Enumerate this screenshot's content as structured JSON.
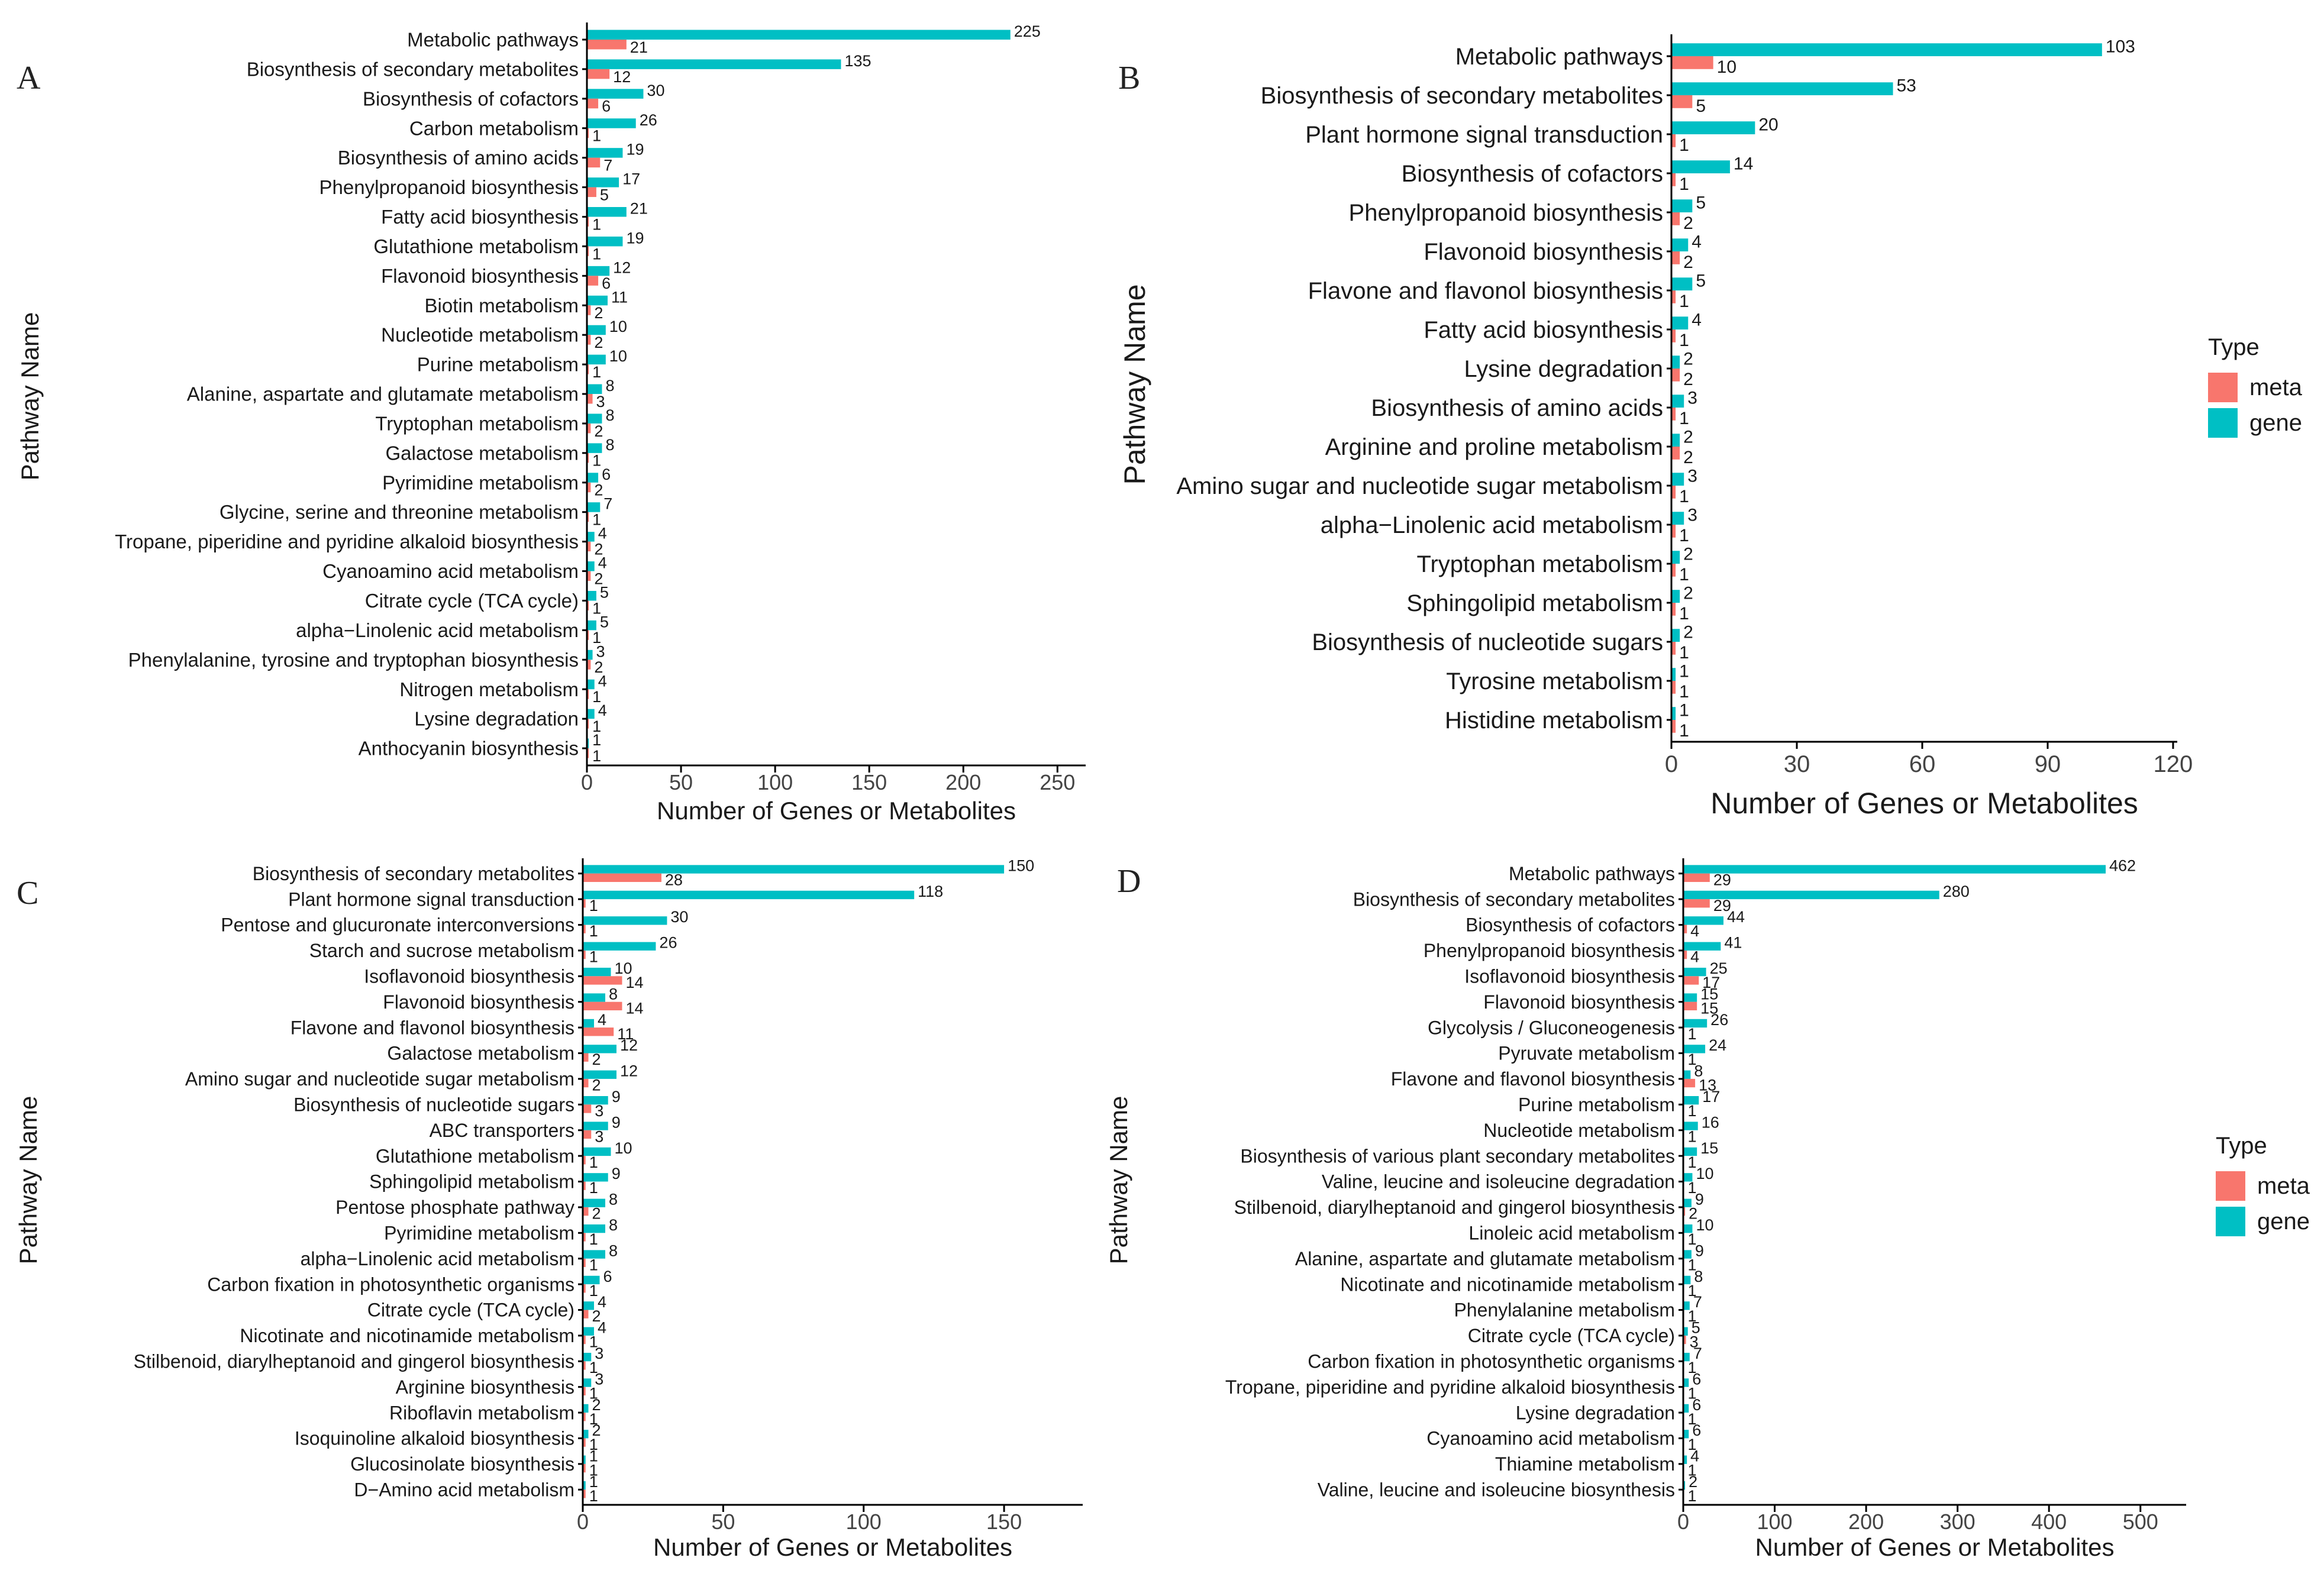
{
  "figure": {
    "legend": {
      "title": "Type",
      "items": [
        "meta",
        "gene"
      ]
    },
    "colors": {
      "meta": "#F8766D",
      "gene": "#00BFC4",
      "axis": "#000000",
      "text": "#1a1a1a"
    }
  },
  "chart_data": [
    {
      "type": "bar",
      "panel": "A",
      "orientation": "horizontal",
      "xlabel": "Number of Genes or Metabolites",
      "ylabel": "Pathway Name",
      "xlim": [
        0,
        265
      ],
      "xticks": [
        0,
        50,
        100,
        150,
        200,
        250
      ],
      "categories": [
        "Metabolic pathways",
        "Biosynthesis of secondary metabolites",
        "Biosynthesis of cofactors",
        "Carbon metabolism",
        "Biosynthesis of amino acids",
        "Phenylpropanoid biosynthesis",
        "Fatty acid biosynthesis",
        "Glutathione metabolism",
        "Flavonoid biosynthesis",
        "Biotin metabolism",
        "Nucleotide metabolism",
        "Purine metabolism",
        "Alanine, aspartate and glutamate metabolism",
        "Tryptophan metabolism",
        "Galactose metabolism",
        "Pyrimidine metabolism",
        "Glycine, serine and threonine metabolism",
        "Tropane, piperidine and pyridine alkaloid biosynthesis",
        "Cyanoamino acid metabolism",
        "Citrate cycle (TCA cycle)",
        "alpha−Linolenic acid metabolism",
        "Phenylalanine, tyrosine and tryptophan biosynthesis",
        "Nitrogen metabolism",
        "Lysine degradation",
        "Anthocyanin biosynthesis"
      ],
      "series": [
        {
          "name": "gene",
          "values": [
            225,
            135,
            30,
            26,
            19,
            17,
            21,
            19,
            12,
            11,
            10,
            10,
            8,
            8,
            8,
            6,
            7,
            4,
            4,
            5,
            5,
            3,
            4,
            4,
            1
          ]
        },
        {
          "name": "meta",
          "values": [
            21,
            12,
            6,
            1,
            7,
            5,
            1,
            1,
            6,
            2,
            2,
            1,
            3,
            2,
            1,
            2,
            1,
            2,
            2,
            1,
            1,
            2,
            1,
            1,
            1
          ]
        }
      ]
    },
    {
      "type": "bar",
      "panel": "B",
      "orientation": "horizontal",
      "xlabel": "Number of Genes or Metabolites",
      "ylabel": "Pathway Name",
      "xlim": [
        0,
        121
      ],
      "xticks": [
        0,
        30,
        60,
        90,
        120
      ],
      "categories": [
        "Metabolic pathways",
        "Biosynthesis of secondary metabolites",
        "Plant hormone signal transduction",
        "Biosynthesis of cofactors",
        "Phenylpropanoid biosynthesis",
        "Flavonoid biosynthesis",
        "Flavone and flavonol biosynthesis",
        "Fatty acid biosynthesis",
        "Lysine degradation",
        "Biosynthesis of amino acids",
        "Arginine and proline metabolism",
        "Amino sugar and nucleotide sugar metabolism",
        "alpha−Linolenic acid metabolism",
        "Tryptophan metabolism",
        "Sphingolipid metabolism",
        "Biosynthesis of nucleotide sugars",
        "Tyrosine metabolism",
        "Histidine metabolism"
      ],
      "series": [
        {
          "name": "gene",
          "values": [
            103,
            53,
            20,
            14,
            5,
            4,
            5,
            4,
            2,
            3,
            2,
            3,
            3,
            2,
            2,
            2,
            1,
            1
          ]
        },
        {
          "name": "meta",
          "values": [
            10,
            5,
            1,
            1,
            2,
            2,
            1,
            1,
            2,
            1,
            2,
            1,
            1,
            1,
            1,
            1,
            1,
            1
          ]
        }
      ]
    },
    {
      "type": "bar",
      "panel": "C",
      "orientation": "horizontal",
      "xlabel": "Number of Genes or Metabolites",
      "ylabel": "Pathway Name",
      "xlim": [
        0,
        178
      ],
      "xticks": [
        0,
        50,
        100,
        150
      ],
      "categories": [
        "Biosynthesis of secondary metabolites",
        "Plant hormone signal transduction",
        "Pentose and glucuronate interconversions",
        "Starch and sucrose metabolism",
        "Isoflavonoid biosynthesis",
        "Flavonoid biosynthesis",
        "Flavone and flavonol biosynthesis",
        "Galactose metabolism",
        "Amino sugar and nucleotide sugar metabolism",
        "Biosynthesis of nucleotide sugars",
        "ABC transporters",
        "Glutathione metabolism",
        "Sphingolipid metabolism",
        "Pentose phosphate pathway",
        "Pyrimidine metabolism",
        "alpha−Linolenic acid metabolism",
        "Carbon fixation in photosynthetic organisms",
        "Citrate cycle (TCA cycle)",
        "Nicotinate and nicotinamide metabolism",
        "Stilbenoid, diarylheptanoid and gingerol biosynthesis",
        "Arginine biosynthesis",
        "Riboflavin metabolism",
        "Isoquinoline alkaloid biosynthesis",
        "Glucosinolate biosynthesis",
        "D−Amino acid metabolism"
      ],
      "series": [
        {
          "name": "gene",
          "values": [
            150,
            118,
            30,
            26,
            10,
            8,
            4,
            12,
            12,
            9,
            9,
            10,
            9,
            8,
            8,
            8,
            6,
            4,
            4,
            3,
            3,
            2,
            2,
            1,
            1
          ]
        },
        {
          "name": "meta",
          "values": [
            28,
            1,
            1,
            1,
            14,
            14,
            11,
            2,
            2,
            3,
            3,
            1,
            1,
            2,
            1,
            1,
            1,
            2,
            1,
            1,
            1,
            1,
            1,
            1,
            1
          ]
        }
      ]
    },
    {
      "type": "bar",
      "panel": "D",
      "orientation": "horizontal",
      "xlabel": "Number of Genes or Metabolites",
      "ylabel": "Pathway Name",
      "xlim": [
        0,
        550
      ],
      "xticks": [
        0,
        100,
        200,
        300,
        400,
        500
      ],
      "categories": [
        "Metabolic pathways",
        "Biosynthesis of secondary metabolites",
        "Biosynthesis of cofactors",
        "Phenylpropanoid biosynthesis",
        "Isoflavonoid biosynthesis",
        "Flavonoid biosynthesis",
        "Glycolysis / Gluconeogenesis",
        "Pyruvate metabolism",
        "Flavone and flavonol biosynthesis",
        "Purine metabolism",
        "Nucleotide metabolism",
        "Biosynthesis of various plant secondary metabolites",
        "Valine, leucine and isoleucine degradation",
        "Stilbenoid, diarylheptanoid and gingerol biosynthesis",
        "Linoleic acid metabolism",
        "Alanine, aspartate and glutamate metabolism",
        "Nicotinate and nicotinamide metabolism",
        "Phenylalanine metabolism",
        "Citrate cycle (TCA cycle)",
        "Carbon fixation in photosynthetic organisms",
        "Tropane, piperidine and pyridine alkaloid biosynthesis",
        "Lysine degradation",
        "Cyanoamino acid metabolism",
        "Thiamine metabolism",
        "Valine, leucine and isoleucine biosynthesis"
      ],
      "series": [
        {
          "name": "gene",
          "values": [
            462,
            280,
            44,
            41,
            25,
            15,
            26,
            24,
            8,
            17,
            16,
            15,
            10,
            9,
            10,
            9,
            8,
            7,
            5,
            7,
            6,
            6,
            6,
            4,
            2
          ]
        },
        {
          "name": "meta",
          "values": [
            29,
            29,
            4,
            4,
            17,
            15,
            1,
            1,
            13,
            1,
            1,
            1,
            1,
            2,
            1,
            1,
            1,
            1,
            3,
            1,
            1,
            1,
            1,
            1,
            1
          ]
        }
      ]
    }
  ]
}
